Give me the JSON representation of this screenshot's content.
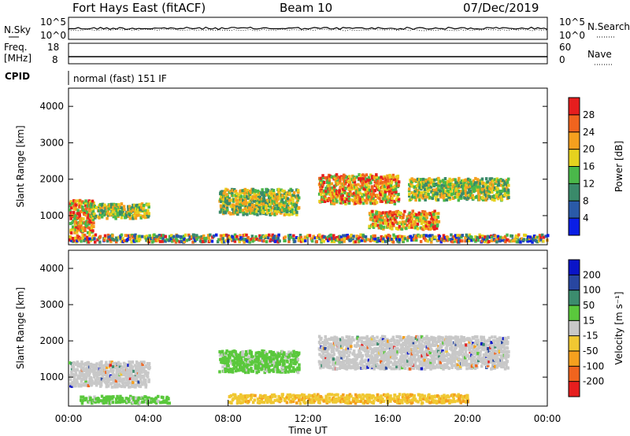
{
  "header": {
    "station": "Fort Hays East (fitACF)",
    "beam": "Beam 10",
    "date": "07/Dec/2019"
  },
  "noise_panel": {
    "left_label": "N.Sky",
    "right_label": "N.Search",
    "left_ticks": [
      "10^5",
      "10^0"
    ],
    "right_ticks": [
      "10^5",
      "10^0"
    ]
  },
  "freq_panel": {
    "left_label_1": "Freq.",
    "left_label_2": "[MHz]",
    "right_label": "Nave",
    "left_ticks": [
      "18",
      "8"
    ],
    "right_ticks": [
      "60",
      "0"
    ]
  },
  "cpid": {
    "label": "CPID",
    "value": "normal (fast) 151 IF"
  },
  "chart_data": [
    {
      "type": "heatmap",
      "name": "power",
      "xlabel": "",
      "ylabel": "Slant Range [km]",
      "x_range_hours": [
        0,
        24
      ],
      "ylim": [
        200,
        4500
      ],
      "y_ticks": [
        1000,
        2000,
        3000,
        4000
      ],
      "colorbar_label": "Power [dB]",
      "colorbar_ticks": [
        "4",
        "8",
        "12",
        "16",
        "20",
        "24",
        "28"
      ],
      "colorbar_colors": [
        "#0a1ee6",
        "#2a5aa8",
        "#3a8a6a",
        "#4ab84a",
        "#e6d21e",
        "#f5a01e",
        "#f0641e",
        "#e61e1e"
      ],
      "echo_bands": [
        {
          "t_start": 0.0,
          "t_end": 1.2,
          "range_low": 500,
          "range_high": 1400,
          "level": "high"
        },
        {
          "t_start": 1.0,
          "t_end": 4.0,
          "range_low": 900,
          "range_high": 1300,
          "level": "medium"
        },
        {
          "t_start": 7.5,
          "t_end": 11.5,
          "range_low": 1000,
          "range_high": 1700,
          "level": "medium"
        },
        {
          "t_start": 12.5,
          "t_end": 16.5,
          "range_low": 1300,
          "range_high": 2100,
          "level": "high"
        },
        {
          "t_start": 15.0,
          "t_end": 18.5,
          "range_low": 600,
          "range_high": 1100,
          "level": "high"
        },
        {
          "t_start": 17.0,
          "t_end": 22.0,
          "range_low": 1400,
          "range_high": 2000,
          "level": "medium"
        },
        {
          "t_start": 0.0,
          "t_end": 24.0,
          "range_low": 250,
          "range_high": 450,
          "level": "mixed"
        }
      ]
    },
    {
      "type": "heatmap",
      "name": "velocity",
      "xlabel": "Time UT",
      "ylabel": "Slant Range [km]",
      "x_range_hours": [
        0,
        24
      ],
      "x_ticks": [
        "00:00",
        "04:00",
        "08:00",
        "12:00",
        "16:00",
        "20:00",
        "00:00"
      ],
      "ylim": [
        200,
        4500
      ],
      "y_ticks": [
        1000,
        2000,
        3000,
        4000
      ],
      "colorbar_label": "Velocity [m s⁻¹]",
      "colorbar_ticks": [
        "-200",
        "-100",
        "-50",
        "-15",
        "15",
        "50",
        "100",
        "200"
      ],
      "colorbar_colors": [
        "#e61e1e",
        "#f0641e",
        "#f5a01e",
        "#f0c832",
        "#c8c8c8",
        "#5ac83c",
        "#3c8c6e",
        "#2846a0",
        "#0a14c8"
      ],
      "echo_bands": [
        {
          "t_start": 0.0,
          "t_end": 4.0,
          "range_low": 700,
          "range_high": 1400,
          "level": "ground"
        },
        {
          "t_start": 7.5,
          "t_end": 11.5,
          "range_low": 1100,
          "range_high": 1700,
          "level": "positive"
        },
        {
          "t_start": 12.5,
          "t_end": 22.0,
          "range_low": 1200,
          "range_high": 2100,
          "level": "ground"
        },
        {
          "t_start": 0.5,
          "t_end": 5.0,
          "range_low": 250,
          "range_high": 450,
          "level": "positive"
        },
        {
          "t_start": 8.0,
          "t_end": 20.0,
          "range_low": 250,
          "range_high": 500,
          "level": "negative"
        }
      ]
    }
  ]
}
